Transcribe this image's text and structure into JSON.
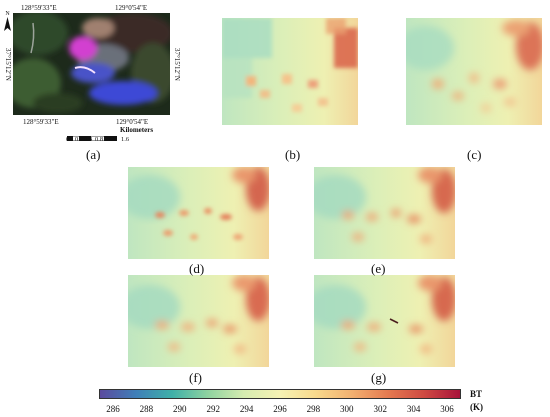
{
  "panels": [
    {
      "id": "a",
      "label": "(a)"
    },
    {
      "id": "b",
      "label": "(b)"
    },
    {
      "id": "c",
      "label": "(c)"
    },
    {
      "id": "d",
      "label": "(d)"
    },
    {
      "id": "e",
      "label": "(e)"
    },
    {
      "id": "f",
      "label": "(f)"
    },
    {
      "id": "g",
      "label": "(g)"
    }
  ],
  "map_a": {
    "lon_top_left": "128°59'33\"E",
    "lon_top_right": "129°0'54\"E",
    "lon_bottom_left": "128°59'33\"E",
    "lon_bottom_right": "129°0'54\"E",
    "lat_left": "37°15'12\"N",
    "lat_right": "37°15'12\"N",
    "north_label": "N",
    "scale_unit": "Kilometers",
    "scale_ticks": [
      "0",
      "0.2",
      "0.4",
      "0.8",
      "1.2",
      "1.6"
    ]
  },
  "colorbar": {
    "title_line1": "BT",
    "title_line2": "(K)",
    "ticks": [
      "286",
      "288",
      "290",
      "292",
      "294",
      "296",
      "298",
      "300",
      "302",
      "304",
      "306"
    ],
    "colors": [
      "#5b4a9e",
      "#3f7fb8",
      "#3fb0a8",
      "#8fd3a0",
      "#d6ecb0",
      "#f6f2b4",
      "#f8d98c",
      "#f2b070",
      "#e57a50",
      "#cf4a42",
      "#a8123a"
    ]
  }
}
